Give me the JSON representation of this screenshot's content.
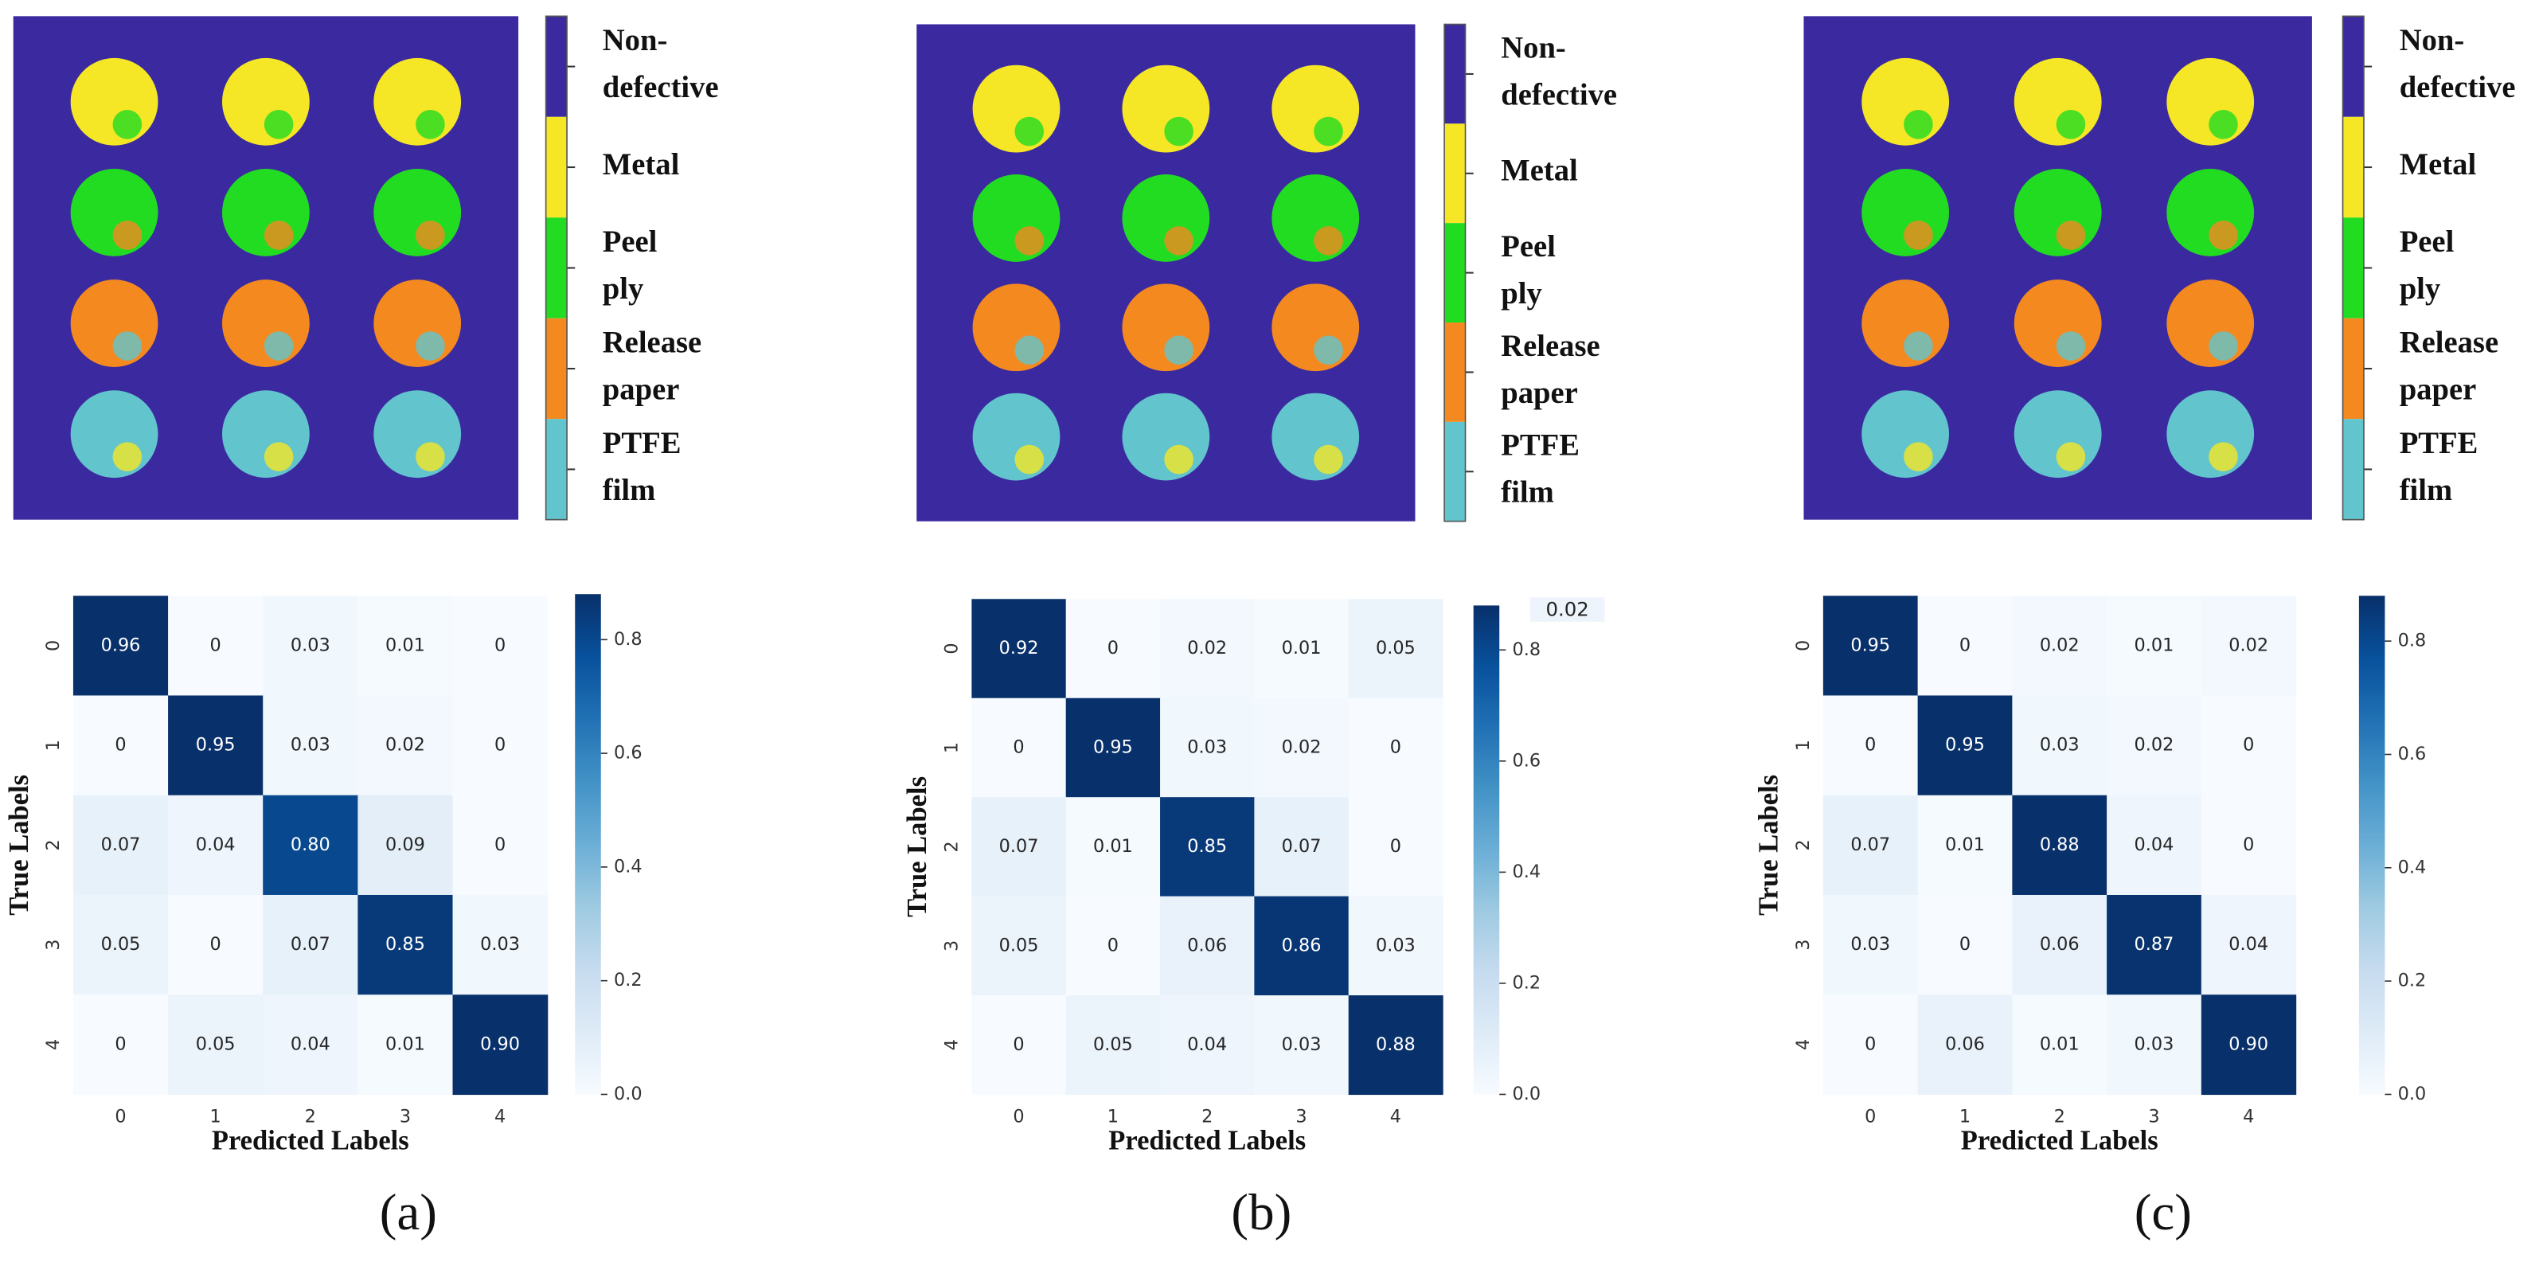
{
  "chart_data": [
    {
      "type": "segmentation-map",
      "legend": [
        {
          "label": [
            "Non-",
            "defective"
          ],
          "color": "#3b2a9f"
        },
        {
          "label": [
            "Metal"
          ],
          "color": "#f6e726"
        },
        {
          "label": [
            "Peel",
            "ply"
          ],
          "color": "#22dc22"
        },
        {
          "label": [
            "Release",
            "paper"
          ],
          "color": "#f48a1f"
        },
        {
          "label": [
            "PTFE",
            "film"
          ],
          "color": "#62c4cd"
        }
      ]
    },
    {
      "type": "heatmap",
      "x_categories": [
        "0",
        "1",
        "2",
        "3",
        "4"
      ],
      "y_categories": [
        "0",
        "1",
        "2",
        "3",
        "4"
      ],
      "xlabel": "Predicted Labels",
      "ylabel": "True Labels",
      "values": [
        [
          0.96,
          0,
          0.03,
          0.01,
          0
        ],
        [
          0,
          0.95,
          0.03,
          0.02,
          0
        ],
        [
          0.07,
          0.04,
          0.8,
          0.09,
          0
        ],
        [
          0.05,
          0,
          0.07,
          0.85,
          0.03
        ],
        [
          0,
          0.05,
          0.04,
          0.01,
          0.9
        ]
      ],
      "value_labels": [
        [
          "0.96",
          "0",
          "0.03",
          "0.01",
          "0"
        ],
        [
          "0",
          "0.95",
          "0.03",
          "0.02",
          "0"
        ],
        [
          "0.07",
          "0.04",
          "0.80",
          "0.09",
          "0"
        ],
        [
          "0.05",
          "0",
          "0.07",
          "0.85",
          "0.03"
        ],
        [
          "0",
          "0.05",
          "0.04",
          "0.01",
          "0.90"
        ]
      ],
      "cmap": [
        "#f7fbff",
        "#deebf7",
        "#c6dbef",
        "#9ecae1",
        "#6baed6",
        "#4292c6",
        "#2171b5",
        "#08519c",
        "#08306b"
      ],
      "clim": [
        0,
        0.88
      ],
      "cticks": [
        {
          "value": 0,
          "label": "0.0"
        },
        {
          "value": 0.2,
          "label": "0.2"
        },
        {
          "value": 0.4,
          "label": "0.4"
        },
        {
          "value": 0.6,
          "label": "0.6"
        },
        {
          "value": 0.8,
          "label": "0.8"
        }
      ]
    },
    {
      "type": "segmentation-map",
      "legend": [
        {
          "label": [
            "Non-",
            "defective"
          ],
          "color": "#3b2a9f"
        },
        {
          "label": [
            "Metal"
          ],
          "color": "#f6e726"
        },
        {
          "label": [
            "Peel",
            "ply"
          ],
          "color": "#22dc22"
        },
        {
          "label": [
            "Release",
            "paper"
          ],
          "color": "#f48a1f"
        },
        {
          "label": [
            "PTFE",
            "film"
          ],
          "color": "#62c4cd"
        }
      ]
    },
    {
      "type": "heatmap",
      "x_categories": [
        "0",
        "1",
        "2",
        "3",
        "4"
      ],
      "y_categories": [
        "0",
        "1",
        "2",
        "3",
        "4"
      ],
      "xlabel": "Predicted Labels",
      "ylabel": "True Labels",
      "values": [
        [
          0.92,
          0,
          0.02,
          0.01,
          0.05
        ],
        [
          0,
          0.95,
          0.03,
          0.02,
          0
        ],
        [
          0.07,
          0.01,
          0.85,
          0.07,
          0
        ],
        [
          0.05,
          0,
          0.06,
          0.86,
          0.03
        ],
        [
          0,
          0.05,
          0.04,
          0.03,
          0.88
        ]
      ],
      "value_labels": [
        [
          "0.92",
          "0",
          "0.02",
          "0.01",
          "0.05"
        ],
        [
          "0",
          "0.95",
          "0.03",
          "0.02",
          "0"
        ],
        [
          "0.07",
          "0.01",
          "0.85",
          "0.07",
          "0"
        ],
        [
          "0.05",
          "0",
          "0.06",
          "0.86",
          "0.03"
        ],
        [
          "0",
          "0.05",
          "0.04",
          "0.03",
          "0.88"
        ]
      ],
      "cmap": [
        "#f7fbff",
        "#deebf7",
        "#c6dbef",
        "#9ecae1",
        "#6baed6",
        "#4292c6",
        "#2171b5",
        "#08519c",
        "#08306b"
      ],
      "clim": [
        0,
        0.88
      ],
      "cticks": [
        {
          "value": 0,
          "label": "0.0"
        },
        {
          "value": 0.2,
          "label": "0.2"
        },
        {
          "value": 0.4,
          "label": "0.4"
        },
        {
          "value": 0.6,
          "label": "0.6"
        },
        {
          "value": 0.8,
          "label": "0.8"
        }
      ],
      "annotation": "0.02"
    },
    {
      "type": "segmentation-map",
      "legend": [
        {
          "label": [
            "Non-",
            "defective"
          ],
          "color": "#3b2a9f"
        },
        {
          "label": [
            "Metal"
          ],
          "color": "#f6e726"
        },
        {
          "label": [
            "Peel",
            "ply"
          ],
          "color": "#22dc22"
        },
        {
          "label": [
            "Release",
            "paper"
          ],
          "color": "#f48a1f"
        },
        {
          "label": [
            "PTFE",
            "film"
          ],
          "color": "#62c4cd"
        }
      ]
    },
    {
      "type": "heatmap",
      "x_categories": [
        "0",
        "1",
        "2",
        "3",
        "4"
      ],
      "y_categories": [
        "0",
        "1",
        "2",
        "3",
        "4"
      ],
      "xlabel": "Predicted Labels",
      "ylabel": "True Labels",
      "values": [
        [
          0.95,
          0,
          0.02,
          0.01,
          0.02
        ],
        [
          0,
          0.95,
          0.03,
          0.02,
          0
        ],
        [
          0.07,
          0.01,
          0.88,
          0.04,
          0
        ],
        [
          0.03,
          0,
          0.06,
          0.87,
          0.04
        ],
        [
          0,
          0.06,
          0.01,
          0.03,
          0.9
        ]
      ],
      "value_labels": [
        [
          "0.95",
          "0",
          "0.02",
          "0.01",
          "0.02"
        ],
        [
          "0",
          "0.95",
          "0.03",
          "0.02",
          "0"
        ],
        [
          "0.07",
          "0.01",
          "0.88",
          "0.04",
          "0"
        ],
        [
          "0.03",
          "0",
          "0.06",
          "0.87",
          "0.04"
        ],
        [
          "0",
          "0.06",
          "0.01",
          "0.03",
          "0.90"
        ]
      ],
      "cmap": [
        "#f7fbff",
        "#deebf7",
        "#c6dbef",
        "#9ecae1",
        "#6baed6",
        "#4292c6",
        "#2171b5",
        "#08519c",
        "#08306b"
      ],
      "clim": [
        0,
        0.88
      ],
      "cticks": [
        {
          "value": 0,
          "label": "0.0"
        },
        {
          "value": 0.2,
          "label": "0.2"
        },
        {
          "value": 0.4,
          "label": "0.4"
        },
        {
          "value": 0.6,
          "label": "0.6"
        },
        {
          "value": 0.8,
          "label": "0.8"
        }
      ]
    }
  ],
  "panel_labels": [
    "(a)",
    "(b)",
    "(c)"
  ]
}
